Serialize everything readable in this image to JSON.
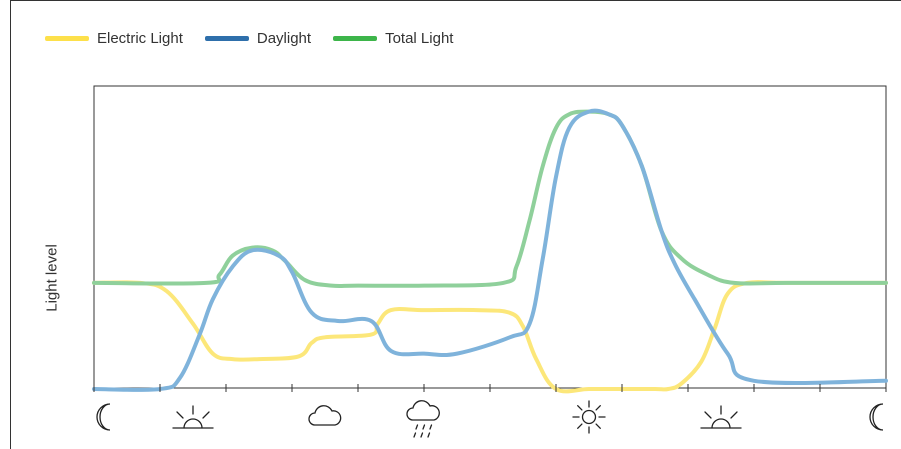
{
  "legend": {
    "electric": "Electric Light",
    "daylight": "Daylight",
    "total": "Total Light"
  },
  "chart_data": {
    "type": "line",
    "title": "",
    "xlabel": "",
    "ylabel": "Light level",
    "xlim": [
      0,
      12
    ],
    "ylim": [
      0,
      100
    ],
    "grid": false,
    "legend_position": "top-left",
    "x_ticks": [
      0,
      1,
      2,
      3,
      4,
      5,
      6,
      7,
      8,
      9,
      10,
      11,
      12
    ],
    "x_icons": [
      {
        "x": 0,
        "icon": "moon-icon"
      },
      {
        "x": 1.5,
        "icon": "sunrise-icon"
      },
      {
        "x": 3.5,
        "icon": "cloud-icon"
      },
      {
        "x": 5,
        "icon": "rain-cloud-icon"
      },
      {
        "x": 7.5,
        "icon": "sun-icon"
      },
      {
        "x": 9.5,
        "icon": "sunset-icon"
      },
      {
        "x": 12,
        "icon": "moon-icon"
      }
    ],
    "series": [
      {
        "name": "Electric Light",
        "color": "#fce77a",
        "x": [
          0,
          0.7,
          1.1,
          1.5,
          1.8,
          2.1,
          2.5,
          3.1,
          3.3,
          3.5,
          4.2,
          4.3,
          4.5,
          5.0,
          5.8,
          6.3,
          6.5,
          6.7,
          7.0,
          7.5,
          8.0,
          8.5,
          8.7,
          8.9,
          9.2,
          9.4,
          9.6,
          9.9,
          10.5,
          12
        ],
        "values": [
          39,
          39,
          36,
          24,
          13,
          11,
          11,
          12,
          17,
          19,
          20,
          24,
          29,
          29,
          29,
          28,
          23,
          11,
          0,
          0,
          0,
          0,
          0,
          2,
          10,
          22,
          35,
          39,
          39,
          39
        ]
      },
      {
        "name": "Daylight",
        "color": "#7fb3db",
        "x": [
          0,
          1.0,
          1.3,
          1.6,
          1.8,
          2.1,
          2.4,
          2.8,
          3.0,
          3.3,
          3.7,
          4.2,
          4.5,
          5.0,
          5.5,
          6.3,
          6.6,
          6.8,
          7.0,
          7.2,
          7.5,
          7.8,
          8.0,
          8.3,
          8.6,
          8.8,
          9.1,
          9.6,
          10.0,
          12
        ],
        "values": [
          0,
          0,
          4,
          20,
          33,
          45,
          51,
          49,
          43,
          28,
          25,
          25,
          14,
          13,
          13,
          19,
          24,
          48,
          78,
          96,
          102,
          101,
          97,
          82,
          58,
          46,
          33,
          13,
          3,
          3
        ]
      },
      {
        "name": "Total Light",
        "color": "#8fd09b",
        "x": [
          0,
          1.7,
          1.9,
          2.1,
          2.4,
          2.7,
          2.9,
          3.2,
          3.6,
          4.0,
          5.0,
          6.2,
          6.4,
          6.6,
          6.8,
          7.0,
          7.2,
          7.5,
          7.8,
          8.0,
          8.3,
          8.6,
          8.9,
          9.3,
          9.7,
          10.5,
          12
        ],
        "values": [
          39,
          39,
          42,
          49,
          52,
          51,
          47,
          40,
          38,
          38,
          38,
          39,
          45,
          62,
          82,
          96,
          101,
          102,
          101,
          97,
          82,
          58,
          48,
          42,
          39,
          39,
          39
        ]
      }
    ]
  }
}
